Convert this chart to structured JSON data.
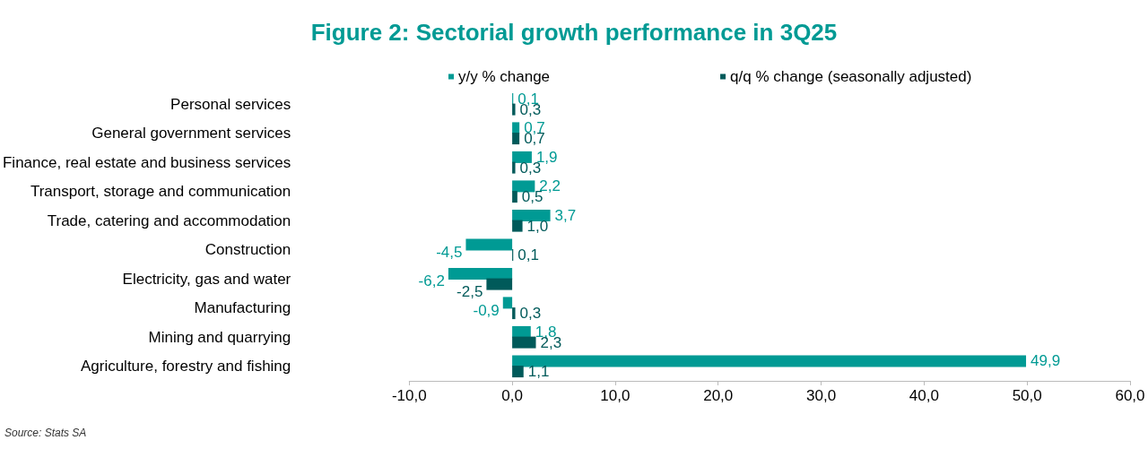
{
  "chart_data": {
    "type": "bar",
    "orientation": "horizontal",
    "title": "Figure 2: Sectorial growth performance in 3Q25",
    "categories": [
      "Personal services",
      "General government services",
      "Finance, real estate and business services",
      "Transport, storage and communication",
      "Trade, catering and accommodation",
      "Construction",
      "Electricity, gas and water",
      "Manufacturing",
      "Mining and quarrying",
      "Agriculture, forestry and fishing"
    ],
    "series": [
      {
        "name": "y/y % change",
        "color": "#009a94",
        "values": [
          0.1,
          0.7,
          1.9,
          2.2,
          3.7,
          -4.5,
          -6.2,
          -0.9,
          1.8,
          49.9
        ],
        "value_labels": [
          "0,1",
          "0,7",
          "1,9",
          "2,2",
          "3,7",
          "-4,5",
          "-6,2",
          "-0,9",
          "1,8",
          "49,9"
        ]
      },
      {
        "name": "q/q % change (seasonally adjusted)",
        "color": "#005a5a",
        "values": [
          0.3,
          0.7,
          0.3,
          0.5,
          1.0,
          0.1,
          -2.5,
          0.3,
          2.3,
          1.1
        ],
        "value_labels": [
          "0,3",
          "0,7",
          "0,3",
          "0,5",
          "1,0",
          "0,1",
          "-2,5",
          "0,3",
          "2,3",
          "1,1"
        ]
      }
    ],
    "xlim": [
      -10,
      60
    ],
    "xticks": [
      {
        "value": -10,
        "label": "-10,0"
      },
      {
        "value": 0,
        "label": "0,0"
      },
      {
        "value": 10,
        "label": "10,0"
      },
      {
        "value": 20,
        "label": "20,0"
      },
      {
        "value": 30,
        "label": "30,0"
      },
      {
        "value": 40,
        "label": "40,0"
      },
      {
        "value": 50,
        "label": "50,0"
      },
      {
        "value": 60,
        "label": "60,0"
      }
    ],
    "grid": false,
    "legend": "top",
    "annotations": [
      "Source: Stats SA"
    ]
  }
}
